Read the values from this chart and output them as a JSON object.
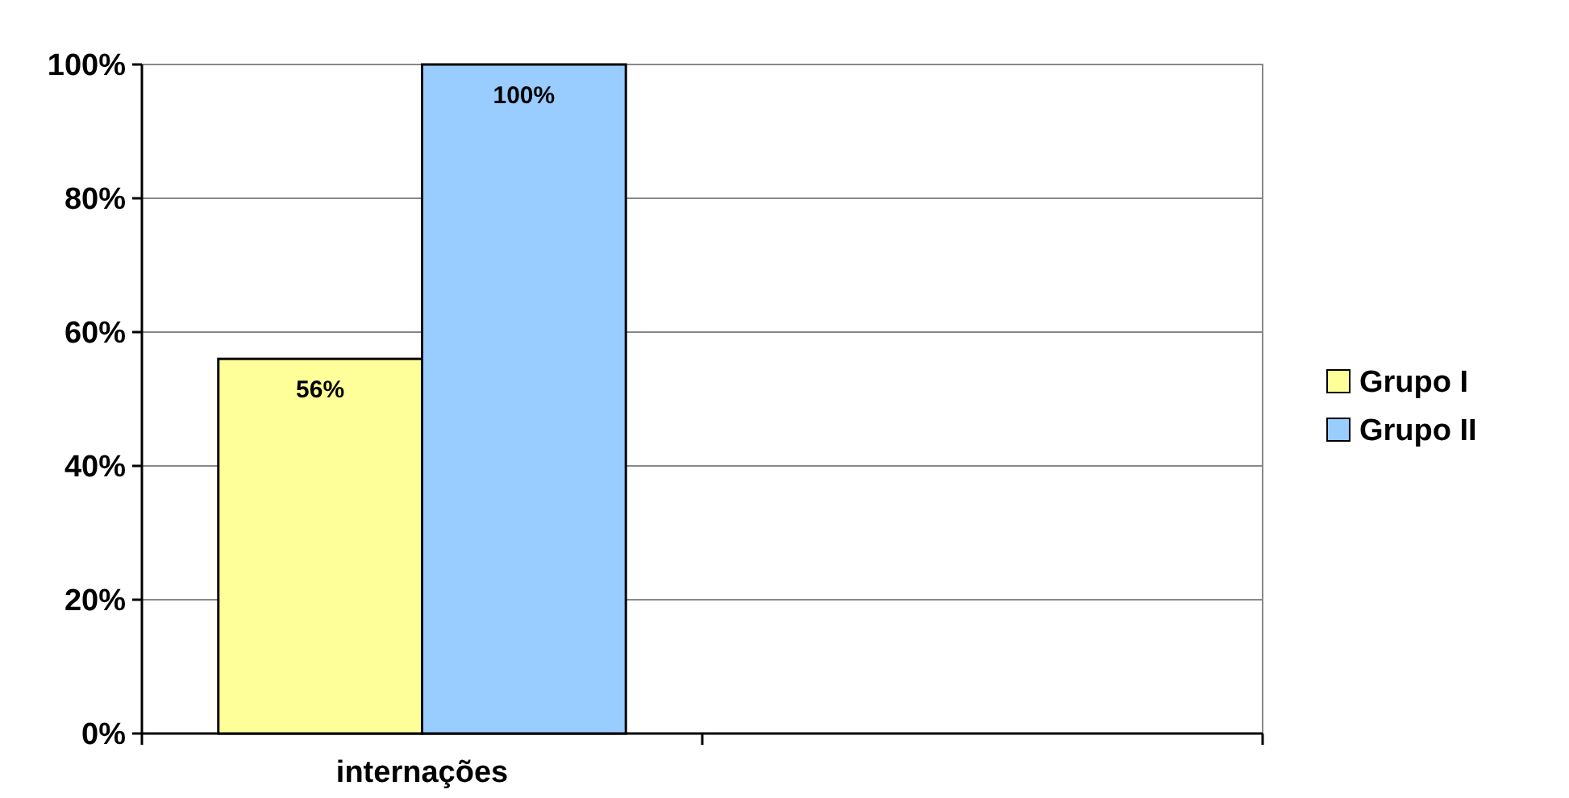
{
  "chart_data": {
    "type": "bar",
    "categories": [
      "internações",
      null
    ],
    "series": [
      {
        "name": "Grupo I",
        "color": "#ffff99",
        "values": [
          56,
          null
        ],
        "value_labels": [
          "56%",
          null
        ]
      },
      {
        "name": "Grupo II",
        "color": "#99ccff",
        "values": [
          100,
          null
        ],
        "value_labels": [
          "100%",
          null
        ]
      }
    ],
    "ylim": [
      0,
      100
    ],
    "yticks": [
      {
        "value": 0,
        "label": "0%"
      },
      {
        "value": 20,
        "label": "20%"
      },
      {
        "value": 40,
        "label": "40%"
      },
      {
        "value": 60,
        "label": "60%"
      },
      {
        "value": 80,
        "label": "80%"
      },
      {
        "value": 100,
        "label": "100%"
      }
    ],
    "grid": "y",
    "legend": "right"
  }
}
